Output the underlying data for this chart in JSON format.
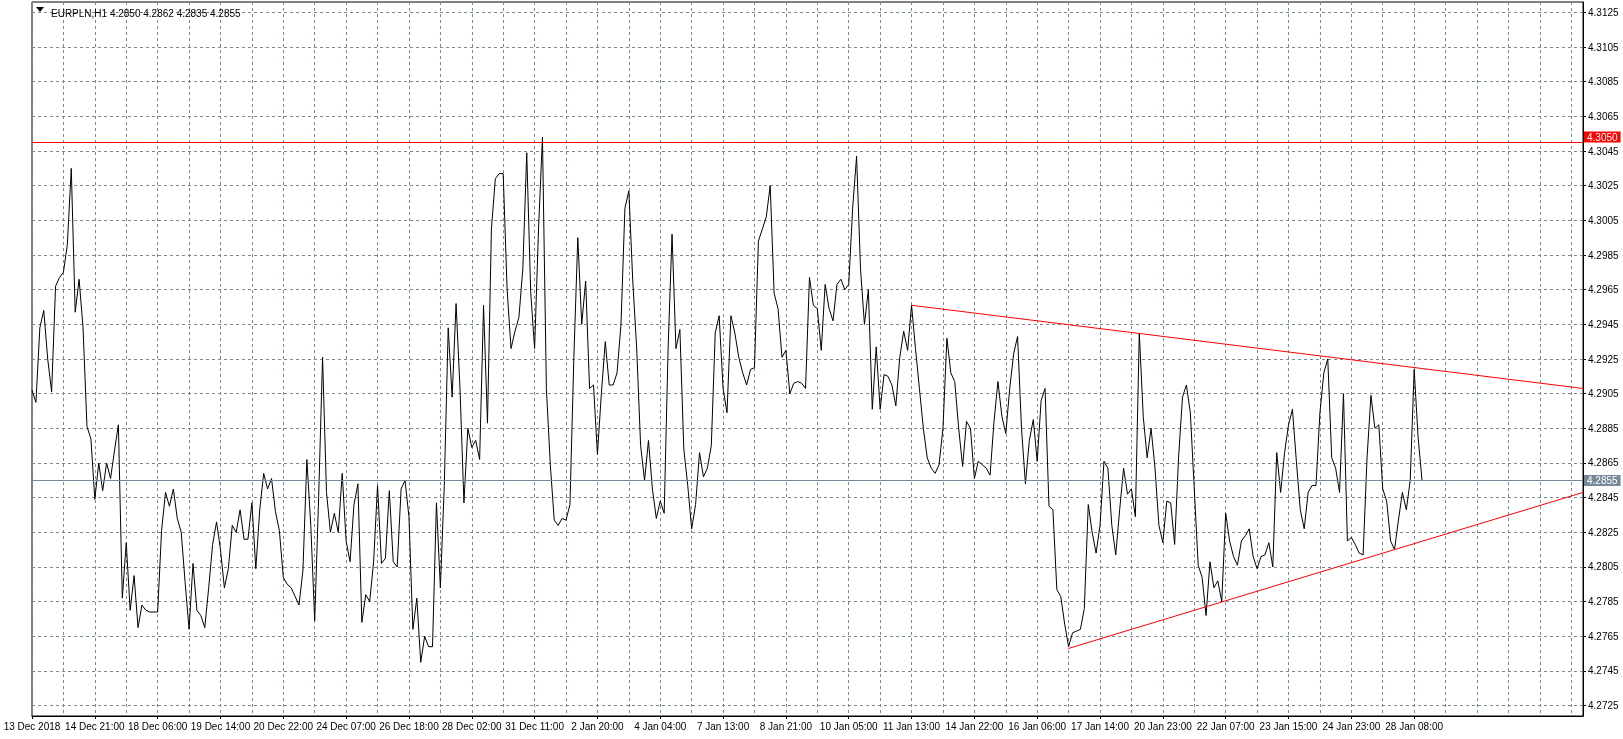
{
  "chart_data": {
    "type": "line",
    "title": "EURPLN,H1 4.2850 4.2862 4.2835 4.2855",
    "categories": [
      "13 Dec 2018",
      null,
      null,
      null,
      null,
      null,
      null,
      null,
      null,
      null,
      null,
      null,
      null,
      null,
      null,
      null,
      "14 Dec 21:00",
      null,
      null,
      null,
      null,
      null,
      null,
      null,
      null,
      null,
      null,
      null,
      null,
      null,
      null,
      null,
      "18 Dec 06:00",
      null,
      null,
      null,
      null,
      null,
      null,
      null,
      null,
      null,
      null,
      null,
      null,
      null,
      null,
      null,
      "19 Dec 14:00",
      null,
      null,
      null,
      null,
      null,
      null,
      null,
      null,
      null,
      null,
      null,
      null,
      null,
      null,
      null,
      "20 Dec 22:00",
      null,
      null,
      null,
      null,
      null,
      null,
      null,
      null,
      null,
      null,
      null,
      null,
      null,
      null,
      null,
      "24 Dec 07:00",
      null,
      null,
      null,
      null,
      null,
      null,
      null,
      null,
      null,
      null,
      null,
      null,
      null,
      null,
      null,
      "26 Dec 18:00",
      null,
      null,
      null,
      null,
      null,
      null,
      null,
      null,
      null,
      null,
      null,
      null,
      null,
      null,
      null,
      "28 Dec 02:00",
      null,
      null,
      null,
      null,
      null,
      null,
      null,
      null,
      null,
      null,
      null,
      null,
      null,
      null,
      null,
      "31 Dec 11:00",
      null,
      null,
      null,
      null,
      null,
      null,
      null,
      null,
      null,
      null,
      null,
      null,
      null,
      null,
      null,
      "2 Jan 20:00",
      null,
      null,
      null,
      null,
      null,
      null,
      null,
      null,
      null,
      null,
      null,
      null,
      null,
      null,
      null,
      "4 Jan 04:00",
      null,
      null,
      null,
      null,
      null,
      null,
      null,
      null,
      null,
      null,
      null,
      null,
      null,
      null,
      null,
      "7 Jan 13:00",
      null,
      null,
      null,
      null,
      null,
      null,
      null,
      null,
      null,
      null,
      null,
      null,
      null,
      null,
      null,
      "8 Jan 21:00",
      null,
      null,
      null,
      null,
      null,
      null,
      null,
      null,
      null,
      null,
      null,
      null,
      null,
      null,
      null,
      "10 Jan 05:00",
      null,
      null,
      null,
      null,
      null,
      null,
      null,
      null,
      null,
      null,
      null,
      null,
      null,
      null,
      null,
      "11 Jan 13:00",
      null,
      null,
      null,
      null,
      null,
      null,
      null,
      null,
      null,
      null,
      null,
      null,
      null,
      null,
      null,
      "14 Jan 22:00",
      null,
      null,
      null,
      null,
      null,
      null,
      null,
      null,
      null,
      null,
      null,
      null,
      null,
      null,
      null,
      "16 Jan 06:00",
      null,
      null,
      null,
      null,
      null,
      null,
      null,
      null,
      null,
      null,
      null,
      null,
      null,
      null,
      null,
      "17 Jan 14:00",
      null,
      null,
      null,
      null,
      null,
      null,
      null,
      null,
      null,
      null,
      null,
      null,
      null,
      null,
      null,
      "20 Jan 23:00",
      null,
      null,
      null,
      null,
      null,
      null,
      null,
      null,
      null,
      null,
      null,
      null,
      null,
      null,
      null,
      "22 Jan 07:00",
      null,
      null,
      null,
      null,
      null,
      null,
      null,
      null,
      null,
      null,
      null,
      null,
      null,
      null,
      null,
      "23 Jan 15:00",
      null,
      null,
      null,
      null,
      null,
      null,
      null,
      null,
      null,
      null,
      null,
      null,
      null,
      null,
      null,
      "24 Jan 23:00",
      null,
      null,
      null,
      null,
      null,
      null,
      null,
      null,
      null,
      null,
      null,
      null,
      null,
      null,
      null,
      "28 Jan 08:00",
      null,
      null,
      null,
      null,
      null,
      null,
      null,
      null,
      null,
      null,
      null,
      null,
      null,
      null,
      null,
      null,
      null,
      null,
      null,
      null,
      null,
      null,
      null,
      null,
      null,
      null,
      null,
      null,
      null,
      null,
      null,
      null,
      null,
      null,
      null,
      null,
      null,
      null,
      null,
      null,
      null,
      null,
      null
    ],
    "series": [
      {
        "color": "#000000",
        "values": [
          4.2907,
          4.29,
          4.2943,
          4.2953,
          4.2925,
          4.2906,
          4.2967,
          4.2972,
          4.2975,
          4.2991,
          4.3035,
          4.2952,
          4.2971,
          4.2943,
          4.2886,
          4.2879,
          4.2844,
          4.2865,
          4.2849,
          4.2865,
          4.2856,
          4.2872,
          4.2887,
          4.2787,
          4.2819,
          4.278,
          4.28,
          4.277,
          4.2783,
          4.278,
          4.2779,
          4.2779,
          4.2779,
          4.2826,
          4.2848,
          4.284,
          4.285,
          4.2833,
          4.2825,
          4.2796,
          4.2769,
          4.2807,
          4.278,
          4.2777,
          4.277,
          4.2793,
          4.2818,
          4.2831,
          4.2815,
          4.2793,
          4.2804,
          4.2829,
          4.2825,
          4.2838,
          4.2821,
          4.2821,
          4.2842,
          4.2804,
          4.2838,
          4.2859,
          4.285,
          4.2856,
          4.2837,
          4.2826,
          4.2799,
          4.2795,
          4.2793,
          4.2788,
          4.2783,
          4.2803,
          4.2867,
          4.2829,
          4.2774,
          4.2845,
          4.2926,
          4.2848,
          4.2825,
          4.2836,
          4.2825,
          4.2859,
          4.282,
          4.2808,
          4.2841,
          4.2853,
          4.2773,
          4.2789,
          4.2785,
          4.2808,
          4.2852,
          4.2807,
          4.281,
          4.2849,
          4.2808,
          4.2805,
          4.285,
          4.2855,
          4.2834,
          4.2769,
          4.2787,
          4.275,
          4.2765,
          4.2759,
          4.2759,
          4.2842,
          4.2793,
          4.2852,
          4.2943,
          4.2903,
          4.2957,
          4.2908,
          4.2842,
          4.2885,
          4.2874,
          4.2878,
          4.2867,
          4.2956,
          4.2888,
          4.3,
          4.3029,
          4.3032,
          4.3032,
          4.2965,
          4.2931,
          4.2941,
          4.2949,
          4.2977,
          4.3044,
          4.2964,
          4.2931,
          4.3,
          4.3053,
          4.2908,
          4.2864,
          4.2832,
          4.2829,
          4.2833,
          4.2832,
          4.2841,
          4.2926,
          4.2995,
          4.2945,
          4.297,
          4.2908,
          4.291,
          4.287,
          4.2905,
          4.2935,
          4.291,
          4.291,
          4.2917,
          4.2945,
          4.3012,
          4.3022,
          4.297,
          4.2931,
          4.2875,
          4.2855,
          4.2878,
          4.285,
          4.2833,
          4.2843,
          4.2836,
          4.2931,
          4.2997,
          4.2931,
          4.2942,
          4.2873,
          4.2852,
          4.2827,
          4.2841,
          4.2871,
          4.2857,
          4.2862,
          4.2875,
          4.294,
          4.295,
          4.2908,
          4.2894,
          4.295,
          4.294,
          4.2926,
          4.2917,
          4.291,
          4.2919,
          4.292,
          4.2993,
          4.3,
          4.3007,
          4.3025,
          4.2963,
          4.2954,
          4.2926,
          4.293,
          4.2905,
          4.2911,
          4.2912,
          4.2911,
          4.2908,
          4.2972,
          4.2956,
          4.2954,
          4.293,
          4.2968,
          4.2954,
          4.2947,
          4.2968,
          4.2971,
          4.2965,
          4.2968,
          4.3012,
          4.3042,
          4.2977,
          4.2945,
          4.2965,
          4.2896,
          4.2932,
          4.2896,
          4.2916,
          4.2915,
          4.291,
          4.2898,
          4.2926,
          4.2941,
          4.293,
          4.2956,
          4.2931,
          4.2908,
          4.2885,
          4.2868,
          4.2862,
          4.2859,
          4.2864,
          4.2885,
          4.2937,
          4.2917,
          4.2912,
          4.2885,
          4.2863,
          4.2889,
          4.2885,
          4.2856,
          4.2866,
          4.2864,
          4.2862,
          4.2858,
          4.2889,
          4.2912,
          4.2892,
          4.2882,
          4.2908,
          4.2928,
          4.2938,
          4.2885,
          4.2853,
          4.2878,
          4.289,
          4.2866,
          4.2901,
          4.2908,
          4.284,
          4.2838,
          4.2792,
          4.2788,
          4.2772,
          4.2759,
          4.2767,
          4.2768,
          4.2769,
          4.2781,
          4.2841,
          4.2825,
          4.2813,
          4.2829,
          4.2866,
          4.2862,
          4.2829,
          4.2812,
          4.2838,
          4.2862,
          4.2847,
          4.285,
          4.2834,
          4.294,
          4.2892,
          4.2868,
          4.2885,
          4.2862,
          4.2829,
          4.2819,
          4.2843,
          4.2842,
          4.2818,
          4.2868,
          4.2903,
          4.291,
          4.2894,
          4.285,
          4.2806,
          4.2799,
          4.2777,
          4.2808,
          4.2793,
          4.2797,
          4.2785,
          4.2836,
          4.282,
          4.2811,
          4.2806,
          4.282,
          4.2823,
          4.2827,
          4.2811,
          4.2804,
          4.2811,
          4.2812,
          4.2819,
          4.2805,
          4.2871,
          4.2848,
          4.2871,
          4.2887,
          4.2896,
          4.2866,
          4.2838,
          4.2827,
          4.2848,
          4.2852,
          4.2852,
          4.2894,
          4.2917,
          4.2925,
          4.2868,
          4.2862,
          4.2848,
          4.2905,
          4.282,
          4.2822,
          4.2818,
          4.2813,
          4.2812,
          4.2868,
          4.2904,
          4.2885,
          4.2887,
          4.285,
          4.2843,
          4.282,
          4.2815,
          4.2832,
          4.2848,
          4.2838,
          4.2855,
          4.2919,
          4.288,
          4.2855,
          null,
          null,
          null,
          null,
          null,
          null,
          null,
          null,
          null,
          null,
          null,
          null,
          null,
          null,
          null,
          null,
          null,
          null,
          null,
          null,
          null,
          null,
          null,
          null,
          null,
          null,
          null,
          null,
          null,
          null,
          null,
          null,
          null,
          null,
          null,
          null,
          null,
          null,
          null,
          null,
          null
        ]
      },
      {
        "color": "#ff0000",
        "values": [
          null,
          null,
          null,
          null,
          null,
          null,
          null,
          null,
          null,
          null,
          null,
          null,
          null,
          null,
          null,
          null,
          null,
          null,
          null,
          null,
          null,
          null,
          null,
          null,
          null,
          null,
          null,
          null,
          null,
          null,
          null,
          null,
          null,
          null,
          null,
          null,
          null,
          null,
          null,
          null,
          null,
          null,
          null,
          null,
          null,
          null,
          null,
          null,
          null,
          null,
          null,
          null,
          null,
          null,
          null,
          null,
          null,
          null,
          null,
          null,
          null,
          null,
          null,
          null,
          null,
          null,
          null,
          null,
          null,
          null,
          null,
          null,
          null,
          null,
          null,
          null,
          null,
          null,
          null,
          null,
          null,
          null,
          null,
          null,
          null,
          null,
          null,
          null,
          null,
          null,
          null,
          null,
          null,
          null,
          null,
          null,
          null,
          null,
          null,
          null,
          null,
          null,
          null,
          null,
          null,
          null,
          null,
          null,
          null,
          null,
          null,
          null,
          null,
          null,
          null,
          null,
          null,
          null,
          null,
          null,
          null,
          null,
          null,
          null,
          null,
          null,
          null,
          null,
          null,
          null,
          null,
          null,
          null,
          null,
          null,
          null,
          null,
          null,
          null,
          null,
          null,
          null,
          null,
          null,
          null,
          null,
          null,
          null,
          null,
          null,
          null,
          null,
          null,
          null,
          null,
          null,
          null,
          null,
          null,
          null,
          null,
          null,
          null,
          null,
          null,
          null,
          null,
          null,
          null,
          null,
          null,
          null,
          null,
          null,
          null,
          null,
          null,
          null,
          null,
          null,
          null,
          null,
          null,
          null,
          null,
          null,
          null,
          null,
          null,
          null,
          null,
          null,
          null,
          null,
          null,
          null,
          null,
          null,
          null,
          null,
          null,
          null,
          null,
          null,
          null,
          null,
          null,
          null,
          null,
          null,
          null,
          null,
          null,
          null,
          null,
          null,
          null,
          null,
          null,
          null,
          null,
          null,
          null,
          null,
          4.2956,
          null,
          null,
          null,
          null,
          null,
          null,
          null,
          null,
          null,
          null,
          null,
          null,
          null,
          null,
          null,
          null,
          null,
          null,
          null,
          null,
          null,
          null,
          null,
          null,
          null,
          null,
          null,
          null,
          null,
          null,
          null,
          null,
          null,
          null,
          null,
          null,
          null,
          null,
          null,
          null,
          null,
          null,
          null,
          null,
          null,
          null,
          null,
          null,
          null,
          null,
          null,
          null,
          null,
          null,
          null,
          null,
          null,
          null,
          null,
          null,
          null,
          null,
          null,
          null,
          null,
          null,
          null,
          null,
          null,
          null,
          null,
          null,
          null,
          null,
          null,
          null,
          null,
          null,
          null,
          null,
          null,
          null,
          null,
          null,
          null,
          null,
          null,
          null,
          null,
          null,
          null,
          null,
          null,
          null,
          null,
          null,
          null,
          null,
          null,
          null,
          null,
          null,
          null,
          null,
          null,
          null,
          null,
          null,
          null,
          null,
          null,
          null,
          null,
          null,
          null,
          null,
          null,
          null,
          null,
          null,
          null,
          null,
          null,
          null,
          null,
          null,
          null,
          null,
          null,
          null,
          null,
          null,
          null,
          null,
          null,
          null,
          null,
          null,
          null,
          null,
          null,
          null,
          null,
          null,
          null,
          null,
          null,
          null,
          null,
          null,
          null,
          null,
          null,
          null,
          null,
          null,
          null,
          null,
          null,
          null,
          null,
          null,
          null,
          null,
          null,
          null,
          null,
          null,
          null,
          null,
          4.2908
        ]
      },
      {
        "color": "#ff0000",
        "values": [
          null,
          null,
          null,
          null,
          null,
          null,
          null,
          null,
          null,
          null,
          null,
          null,
          null,
          null,
          null,
          null,
          null,
          null,
          null,
          null,
          null,
          null,
          null,
          null,
          null,
          null,
          null,
          null,
          null,
          null,
          null,
          null,
          null,
          null,
          null,
          null,
          null,
          null,
          null,
          null,
          null,
          null,
          null,
          null,
          null,
          null,
          null,
          null,
          null,
          null,
          null,
          null,
          null,
          null,
          null,
          null,
          null,
          null,
          null,
          null,
          null,
          null,
          null,
          null,
          null,
          null,
          null,
          null,
          null,
          null,
          null,
          null,
          null,
          null,
          null,
          null,
          null,
          null,
          null,
          null,
          null,
          null,
          null,
          null,
          null,
          null,
          null,
          null,
          null,
          null,
          null,
          null,
          null,
          null,
          null,
          null,
          null,
          null,
          null,
          null,
          null,
          null,
          null,
          null,
          null,
          null,
          null,
          null,
          null,
          null,
          null,
          null,
          null,
          null,
          null,
          null,
          null,
          null,
          null,
          null,
          null,
          null,
          null,
          null,
          null,
          null,
          null,
          null,
          null,
          null,
          null,
          null,
          null,
          null,
          null,
          null,
          null,
          null,
          null,
          null,
          null,
          null,
          null,
          null,
          null,
          null,
          null,
          null,
          null,
          null,
          null,
          null,
          null,
          null,
          null,
          null,
          null,
          null,
          null,
          null,
          null,
          null,
          null,
          null,
          null,
          null,
          null,
          null,
          null,
          null,
          null,
          null,
          null,
          null,
          null,
          null,
          null,
          null,
          null,
          null,
          null,
          null,
          null,
          null,
          null,
          null,
          null,
          null,
          null,
          null,
          null,
          null,
          null,
          null,
          null,
          null,
          null,
          null,
          null,
          null,
          null,
          null,
          null,
          null,
          null,
          null,
          null,
          null,
          null,
          null,
          null,
          null,
          null,
          null,
          null,
          null,
          null,
          null,
          null,
          null,
          null,
          null,
          null,
          null,
          null,
          null,
          null,
          null,
          null,
          null,
          null,
          null,
          null,
          null,
          null,
          null,
          null,
          null,
          null,
          null,
          null,
          null,
          null,
          null,
          null,
          null,
          null,
          null,
          null,
          null,
          null,
          null,
          null,
          null,
          null,
          null,
          null,
          null,
          null,
          null,
          null,
          null,
          null,
          null,
          4.2758,
          null,
          null,
          null,
          null,
          null,
          null,
          null,
          null,
          null,
          null,
          null,
          null,
          null,
          null,
          null,
          null,
          null,
          null,
          null,
          null,
          null,
          null,
          null,
          null,
          null,
          null,
          null,
          null,
          null,
          null,
          null,
          null,
          null,
          null,
          null,
          null,
          null,
          null,
          null,
          null,
          null,
          null,
          null,
          null,
          null,
          null,
          null,
          null,
          null,
          null,
          null,
          null,
          null,
          null,
          null,
          null,
          null,
          null,
          null,
          null,
          null,
          null,
          null,
          null,
          null,
          null,
          null,
          null,
          null,
          null,
          null,
          null,
          null,
          null,
          null,
          null,
          null,
          null,
          null,
          null,
          null,
          null,
          null,
          null,
          null,
          null,
          null,
          null,
          null,
          null,
          null,
          null,
          null,
          null,
          null,
          null,
          null,
          null,
          null,
          null,
          null,
          null,
          null,
          null,
          null,
          null,
          null,
          null,
          null,
          null,
          null,
          null,
          null,
          null,
          null,
          null,
          null,
          null,
          null,
          null,
          null,
          null,
          null,
          null,
          null,
          null,
          null,
          null,
          null,
          null,
          4.2848
        ]
      }
    ],
    "ylim": [
      4.2719,
      4.3131
    ],
    "yticks": [
      4.2725,
      4.2745,
      4.2765,
      4.2785,
      4.2805,
      4.2825,
      4.2845,
      4.2865,
      4.2885,
      4.2905,
      4.2925,
      4.2945,
      4.2965,
      4.2985,
      4.3005,
      4.3025,
      4.3045,
      4.3065,
      4.3085,
      4.3105,
      4.3125
    ],
    "ref_lines": [
      {
        "axis": "y",
        "value": 4.305,
        "label": "4.3050",
        "color": "#ff0000"
      },
      {
        "axis": "y",
        "value": 4.2855,
        "label": "4.2855",
        "color": "#778899"
      }
    ],
    "grid": true,
    "marker": "none",
    "line_style": "solid"
  }
}
